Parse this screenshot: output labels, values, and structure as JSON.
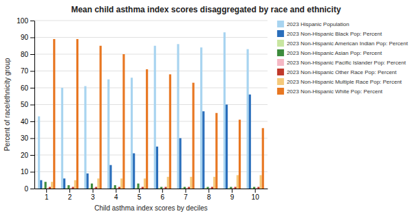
{
  "chart_data": {
    "type": "bar",
    "title": "Mean child asthma index scores disaggregated by race and ethnicity",
    "xlabel": "Child asthma index scores by deciles",
    "ylabel": "Percent of race/ethnicity group",
    "categories": [
      "1",
      "2",
      "3",
      "4",
      "5",
      "6",
      "7",
      "8",
      "9",
      "10"
    ],
    "series": [
      {
        "name": "2023 Hispanic Population",
        "color": "#a8d4f0",
        "values": [
          43,
          60,
          61,
          65,
          66,
          85,
          86,
          84,
          93,
          83
        ]
      },
      {
        "name": "2023 Non-Hispanic Black Pop: Percent",
        "color": "#2a6ebb",
        "values": [
          5,
          6,
          9,
          14,
          21,
          25,
          30,
          46,
          50,
          56
        ]
      },
      {
        "name": "2023 Non-Hispanic American Indian Pop: Percent",
        "color": "#c8e6a0",
        "values": [
          0.5,
          0.5,
          0.5,
          0.5,
          0.5,
          0.5,
          0.5,
          0.5,
          0.5,
          0.5
        ]
      },
      {
        "name": "2023 Non-Hispanic Asian Pop: Percent",
        "color": "#3d8c3d",
        "values": [
          4,
          2,
          3,
          2,
          3,
          1,
          1,
          1,
          1,
          1
        ]
      },
      {
        "name": "2023 Non-Hispanic Pacific Islander Pop: Percent",
        "color": "#f5b8c4",
        "values": [
          0.5,
          0.5,
          0.5,
          0.5,
          0.5,
          0.5,
          0.5,
          0.5,
          0.5,
          0.5
        ]
      },
      {
        "name": "2023 Non-Hispanic Other Race Pop: Percent",
        "color": "#c0392b",
        "values": [
          1,
          1,
          1,
          1,
          1,
          1,
          1,
          1,
          1,
          1
        ]
      },
      {
        "name": "2023 Non-Hispanic Multiple Race Pop: Percent",
        "color": "#f5c97a",
        "values": [
          4,
          5,
          6,
          6,
          6,
          7,
          7,
          7,
          8,
          8
        ]
      },
      {
        "name": "2023 Non-Hispanic White Pop: Percent",
        "color": "#e87722",
        "values": [
          89,
          89,
          85,
          80,
          71,
          68,
          63,
          45,
          41,
          36
        ]
      }
    ],
    "ylim": [
      0,
      100
    ],
    "yticks": [
      0,
      10,
      20,
      30,
      40,
      50,
      60,
      70,
      80,
      90,
      100
    ],
    "grid": true,
    "legend": "right"
  }
}
